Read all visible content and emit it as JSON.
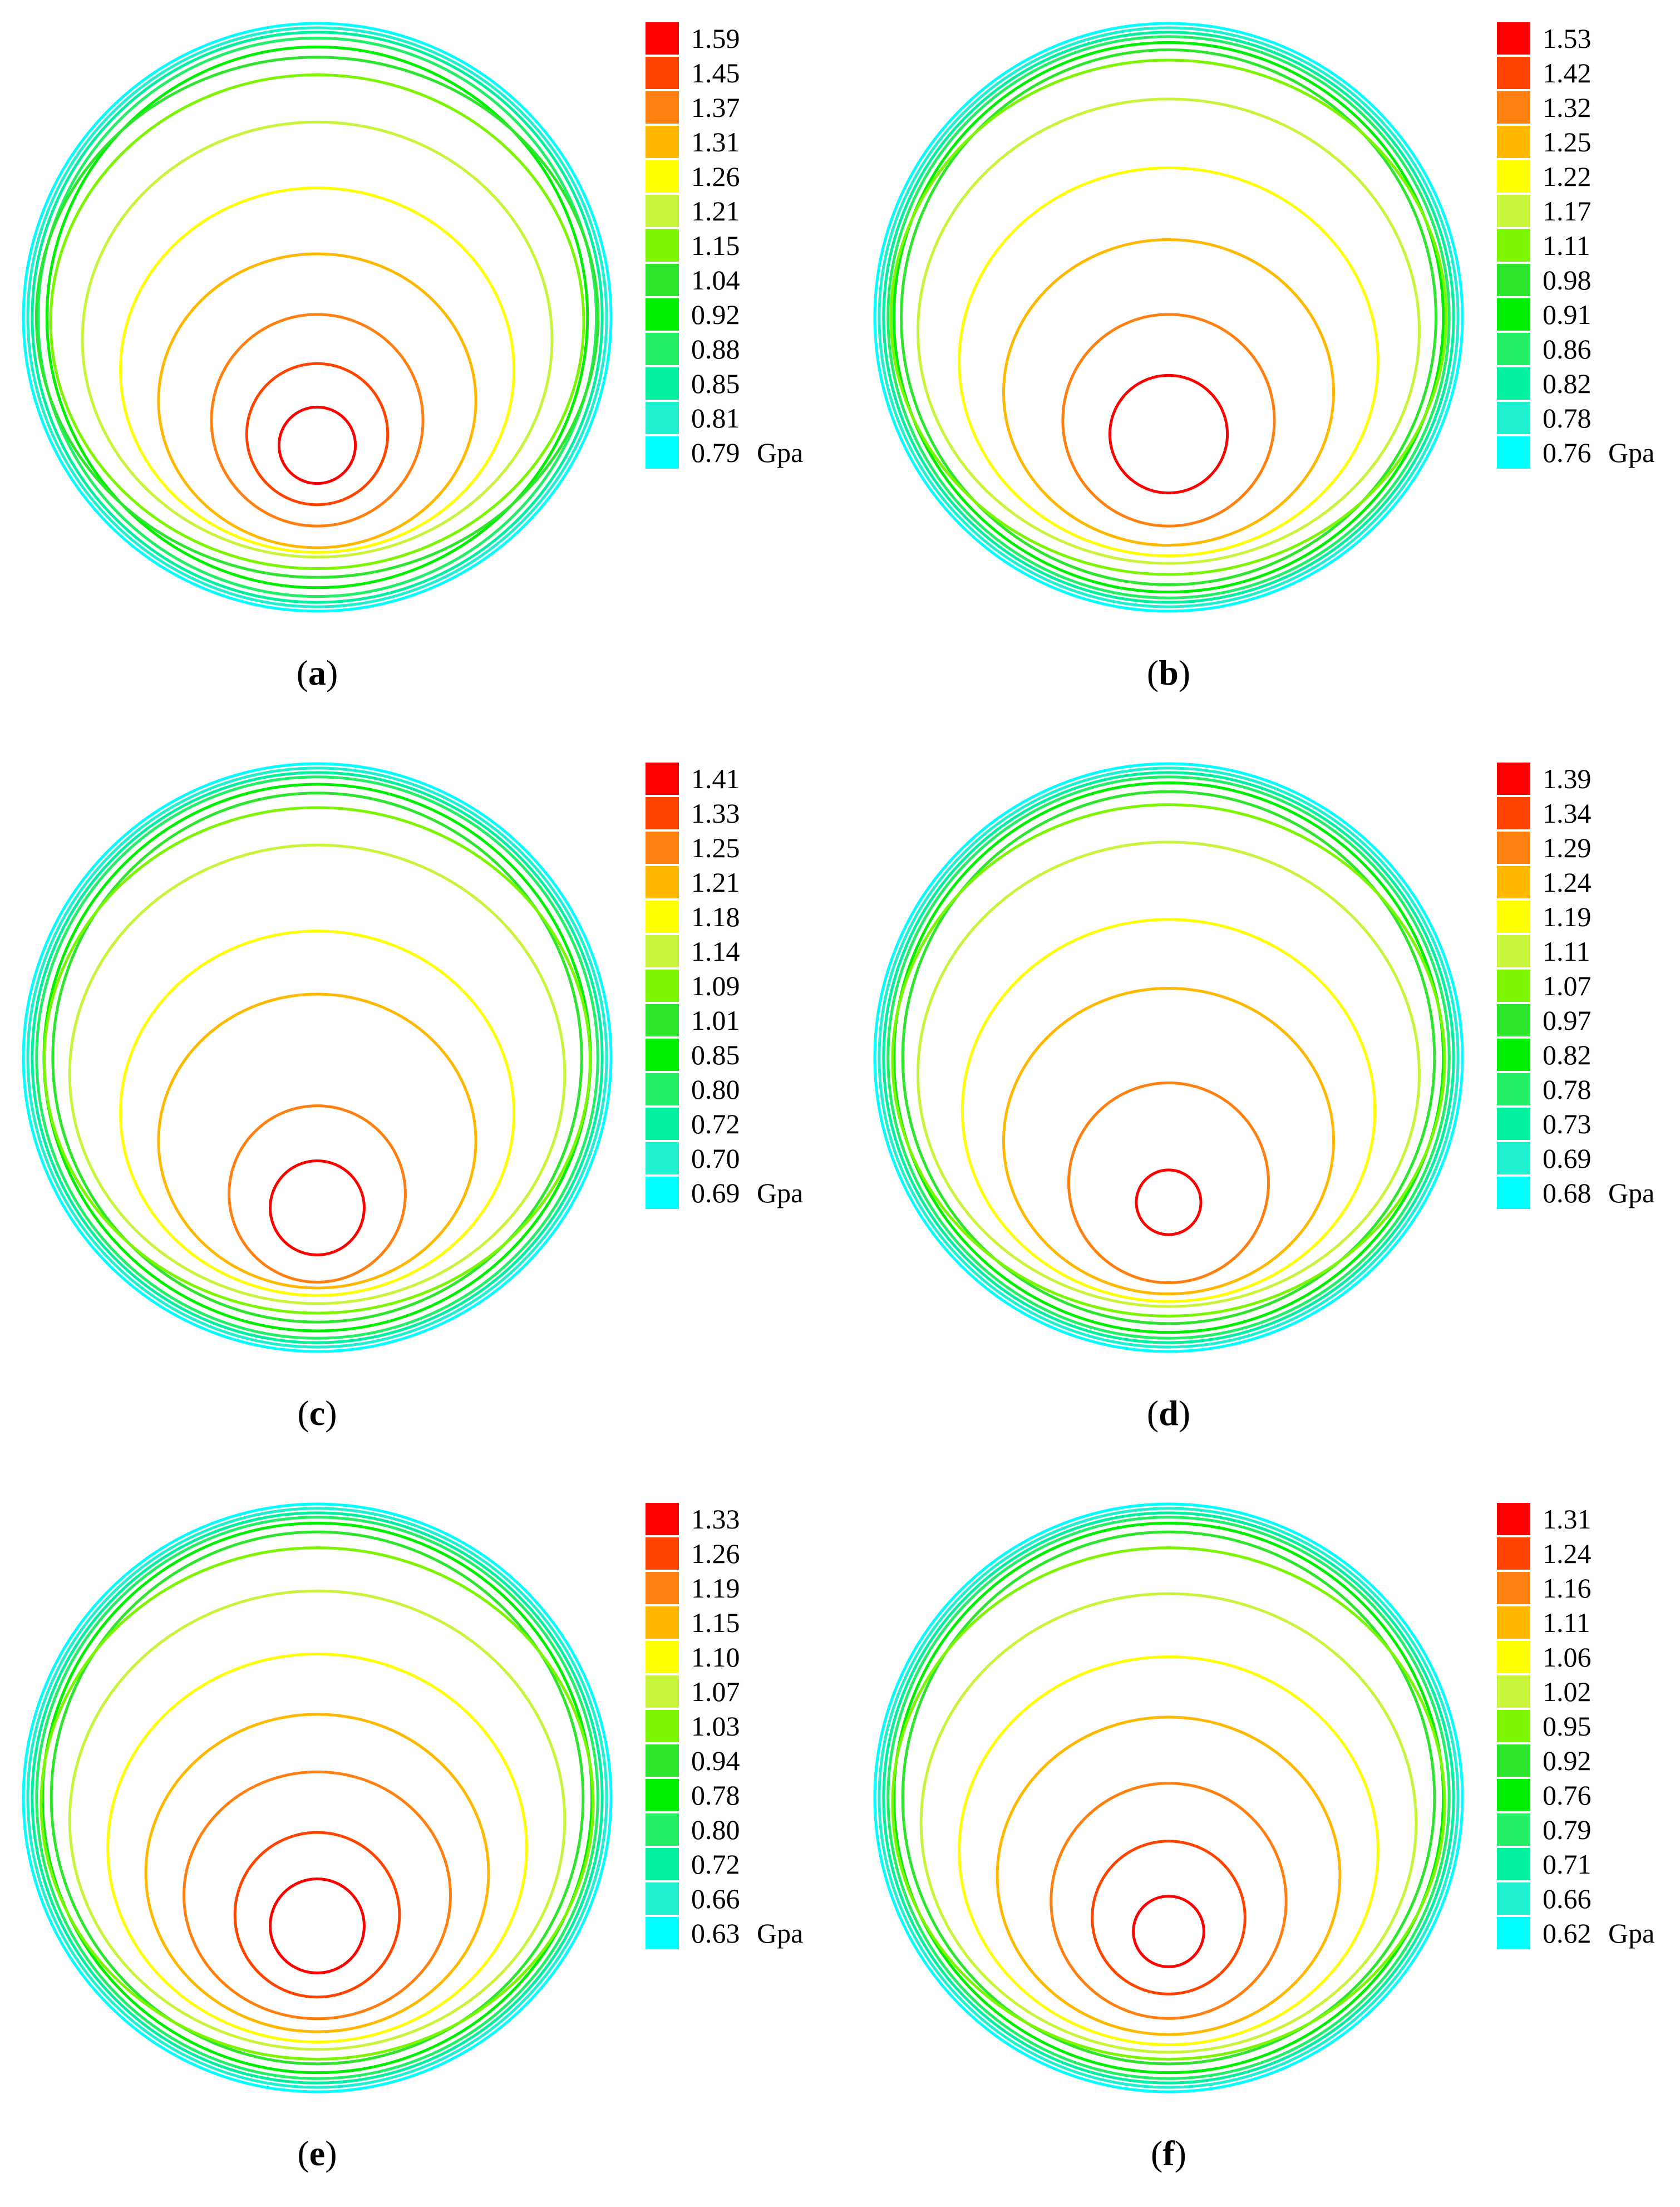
{
  "figure": {
    "unit": "Gpa",
    "legend_colors": [
      "#ff0000",
      "#ff4400",
      "#ff7f10",
      "#ffb800",
      "#ffff00",
      "#c8f53c",
      "#7cf500",
      "#2ee52e",
      "#00ee00",
      "#22ee66",
      "#00f0a0",
      "#20f0d0",
      "#00ffff"
    ],
    "panels": [
      {
        "id": "a",
        "caption_letter": "a",
        "caption": "(a)",
        "levels": [
          "1.59",
          "1.45",
          "1.37",
          "1.31",
          "1.26",
          "1.21",
          "1.15",
          "1.04",
          "0.92",
          "0.88",
          "0.85",
          "0.81",
          "0.79"
        ]
      },
      {
        "id": "b",
        "caption_letter": "b",
        "caption": "(b)",
        "levels": [
          "1.53",
          "1.42",
          "1.32",
          "1.25",
          "1.22",
          "1.17",
          "1.11",
          "0.98",
          "0.91",
          "0.86",
          "0.82",
          "0.78",
          "0.76"
        ]
      },
      {
        "id": "c",
        "caption_letter": "c",
        "caption": "(c)",
        "levels": [
          "1.41",
          "1.33",
          "1.25",
          "1.21",
          "1.18",
          "1.14",
          "1.09",
          "1.01",
          "0.85",
          "0.80",
          "0.72",
          "0.70",
          "0.69"
        ]
      },
      {
        "id": "d",
        "caption_letter": "d",
        "caption": "(d)",
        "levels": [
          "1.39",
          "1.34",
          "1.29",
          "1.24",
          "1.19",
          "1.11",
          "1.07",
          "0.97",
          "0.82",
          "0.78",
          "0.73",
          "0.69",
          "0.68"
        ]
      },
      {
        "id": "e",
        "caption_letter": "e",
        "caption": "(e)",
        "levels": [
          "1.33",
          "1.26",
          "1.19",
          "1.15",
          "1.10",
          "1.07",
          "1.03",
          "0.94",
          "0.78",
          "0.80",
          "0.72",
          "0.66",
          "0.63"
        ]
      },
      {
        "id": "f",
        "caption_letter": "f",
        "caption": "(f)",
        "levels": [
          "1.31",
          "1.24",
          "1.16",
          "1.11",
          "1.06",
          "1.02",
          "0.95",
          "0.92",
          "0.76",
          "0.79",
          "0.71",
          "0.66",
          "0.62"
        ]
      }
    ]
  },
  "chart_data": [
    {
      "type": "contour",
      "panel": "a",
      "title": "(a)",
      "unit": "Gpa",
      "colorbar_levels": [
        1.59,
        1.45,
        1.37,
        1.31,
        1.26,
        1.21,
        1.15,
        1.04,
        0.92,
        0.88,
        0.85,
        0.81,
        0.79
      ]
    },
    {
      "type": "contour",
      "panel": "b",
      "title": "(b)",
      "unit": "Gpa",
      "colorbar_levels": [
        1.53,
        1.42,
        1.32,
        1.25,
        1.22,
        1.17,
        1.11,
        0.98,
        0.91,
        0.86,
        0.82,
        0.78,
        0.76
      ]
    },
    {
      "type": "contour",
      "panel": "c",
      "title": "(c)",
      "unit": "Gpa",
      "colorbar_levels": [
        1.41,
        1.33,
        1.25,
        1.21,
        1.18,
        1.14,
        1.09,
        1.01,
        0.85,
        0.8,
        0.72,
        0.7,
        0.69
      ]
    },
    {
      "type": "contour",
      "panel": "d",
      "title": "(d)",
      "unit": "Gpa",
      "colorbar_levels": [
        1.39,
        1.34,
        1.29,
        1.24,
        1.19,
        1.11,
        1.07,
        0.97,
        0.82,
        0.78,
        0.73,
        0.69,
        0.68
      ]
    },
    {
      "type": "contour",
      "panel": "e",
      "title": "(e)",
      "unit": "Gpa",
      "colorbar_levels": [
        1.33,
        1.26,
        1.19,
        1.15,
        1.1,
        1.07,
        1.03,
        0.94,
        0.78,
        0.8,
        0.72,
        0.66,
        0.63
      ]
    },
    {
      "type": "contour",
      "panel": "f",
      "title": "(f)",
      "unit": "Gpa",
      "colorbar_levels": [
        1.31,
        1.24,
        1.16,
        1.11,
        1.06,
        1.02,
        0.95,
        0.92,
        0.76,
        0.79,
        0.71,
        0.66,
        0.62
      ]
    }
  ]
}
